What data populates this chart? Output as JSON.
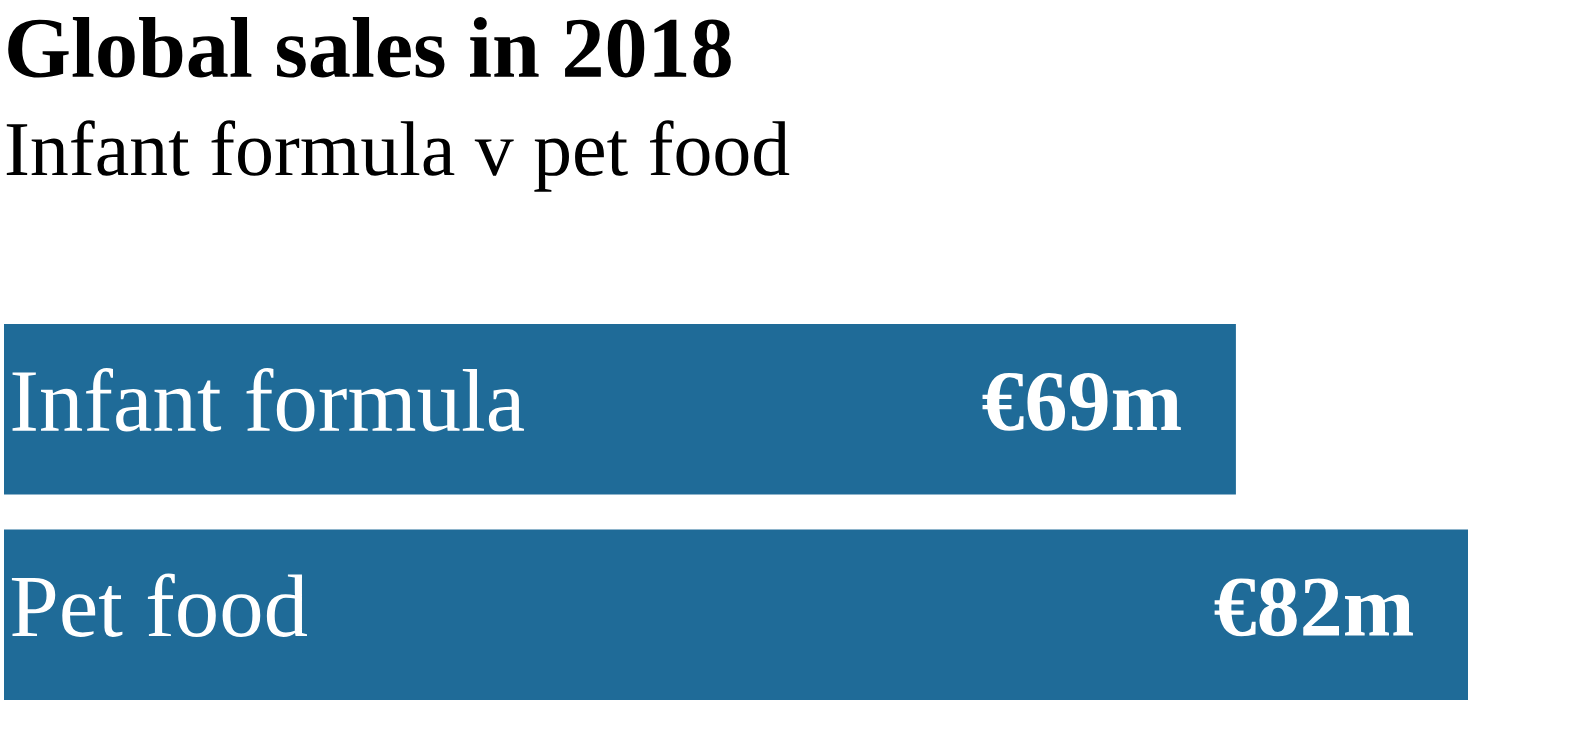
{
  "chart_data": {
    "type": "bar",
    "orientation": "horizontal",
    "title": "Global sales in 2018",
    "subtitle": "Infant formula v pet food",
    "categories": [
      "Infant formula",
      "Pet food"
    ],
    "values": [
      69,
      82
    ],
    "value_labels": [
      "€69m",
      "€82m"
    ],
    "color": "#1f6b98"
  }
}
